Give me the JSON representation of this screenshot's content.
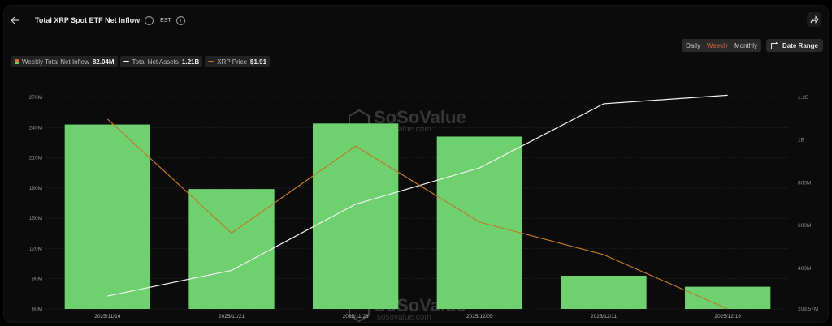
{
  "header": {
    "title": "Total XRP Spot ETF Net Inflow",
    "timezone": "EST"
  },
  "controls": {
    "tabs": [
      "Daily",
      "Weekly",
      "Monthly"
    ],
    "date_range": "Date Range"
  },
  "legend": [
    {
      "label": "Weekly Total Net Inflow",
      "value": "82.04M"
    },
    {
      "label": "Total Net Assets",
      "value": "1.21B"
    },
    {
      "label": "XRP Price",
      "value": "$1.91"
    }
  ],
  "watermark": {
    "brand": "SoSoValue",
    "url": "sosovalue.com"
  },
  "colors": {
    "bar": "#6ed06e",
    "assets_line": "#f2f2f2",
    "price_line": "#c07a2a",
    "grid": "#262626",
    "active_tab": "#e0673e"
  },
  "chart_data": {
    "type": "bar",
    "categories": [
      "2025/11/14",
      "2025/11/21",
      "2025/11/28",
      "2025/12/05",
      "2025/12/11",
      "2025/12/19"
    ],
    "series": [
      {
        "name": "Weekly Total Net Inflow",
        "axis": "left",
        "kind": "bar",
        "values": [
          243,
          179,
          244,
          231,
          93,
          82.04
        ]
      },
      {
        "name": "Total Net Assets",
        "axis": "right",
        "kind": "line",
        "values": [
          270000000,
          390000000,
          700000000,
          870000000,
          1170000000,
          1210000000
        ]
      },
      {
        "name": "XRP Price",
        "kind": "line",
        "values": [
          2.26,
          2.05,
          2.21,
          2.07,
          2.01,
          1.91
        ]
      }
    ],
    "y_left": {
      "ticks": [
        "270M",
        "240M",
        "210M",
        "180M",
        "150M",
        "120M",
        "90M",
        "60M"
      ],
      "min": 60,
      "max": 270
    },
    "y_right": {
      "ticks": [
        "1.2B",
        "1B",
        "800M",
        "600M",
        "400M",
        "209.57M"
      ],
      "min": 209570000,
      "max": 1200000000
    },
    "price_range": [
      1.91,
      2.3
    ],
    "grid": true,
    "legend_position": "top-left"
  }
}
